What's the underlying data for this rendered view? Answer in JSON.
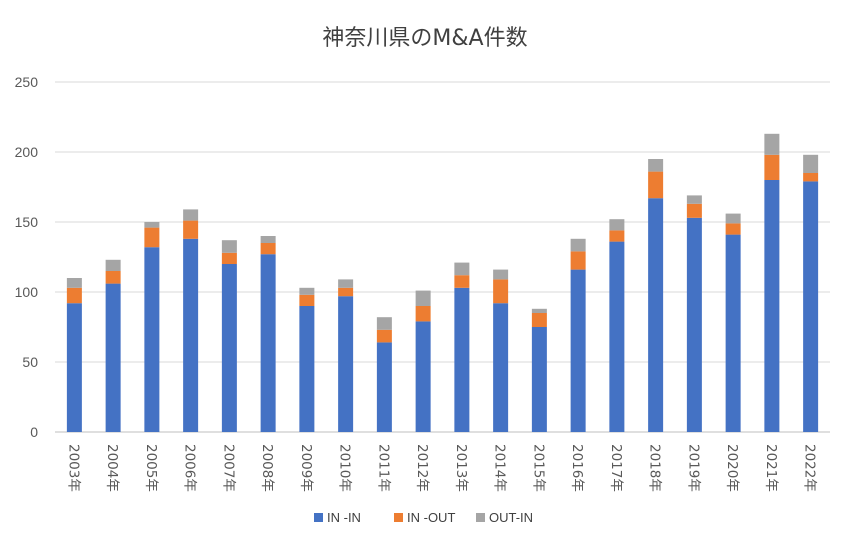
{
  "chart_data": {
    "type": "bar",
    "stacked": true,
    "title": "神奈川県のM&A件数",
    "xlabel": "",
    "ylabel": "",
    "ylim": [
      0,
      250
    ],
    "yticks": [
      0,
      50,
      100,
      150,
      200,
      250
    ],
    "grid": true,
    "legend_position": "bottom",
    "categories": [
      "2003年",
      "2004年",
      "2005年",
      "2006年",
      "2007年",
      "2008年",
      "2009年",
      "2010年",
      "2011年",
      "2012年",
      "2013年",
      "2014年",
      "2015年",
      "2016年",
      "2017年",
      "2018年",
      "2019年",
      "2020年",
      "2021年",
      "2022年"
    ],
    "series": [
      {
        "name": "IN -IN",
        "color": "#4472c4",
        "values": [
          92,
          106,
          132,
          138,
          120,
          127,
          90,
          97,
          64,
          79,
          103,
          92,
          75,
          116,
          136,
          167,
          153,
          141,
          180,
          179
        ]
      },
      {
        "name": "IN -OUT",
        "color": "#ed7d31",
        "values": [
          11,
          9,
          14,
          13,
          8,
          8,
          8,
          6,
          9,
          11,
          9,
          17,
          10,
          13,
          8,
          19,
          10,
          8,
          18,
          6
        ]
      },
      {
        "name": "OUT-IN",
        "color": "#a5a5a5",
        "values": [
          7,
          8,
          4,
          8,
          9,
          5,
          5,
          6,
          9,
          11,
          9,
          7,
          3,
          9,
          8,
          9,
          6,
          7,
          15,
          13
        ]
      }
    ]
  }
}
